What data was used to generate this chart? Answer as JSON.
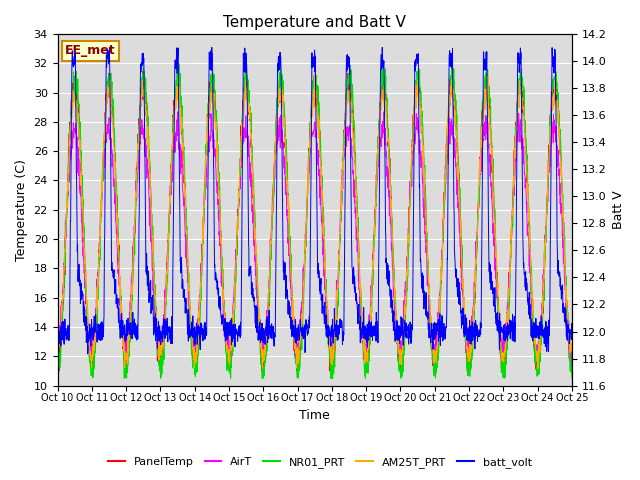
{
  "title": "Temperature and Batt V",
  "xlabel": "Time",
  "ylabel_left": "Temperature (C)",
  "ylabel_right": "Batt V",
  "ylim_left": [
    10,
    34
  ],
  "ylim_right": [
    11.6,
    14.2
  ],
  "yticks_left": [
    10,
    12,
    14,
    16,
    18,
    20,
    22,
    24,
    26,
    28,
    30,
    32,
    34
  ],
  "yticks_right": [
    11.6,
    11.8,
    12.0,
    12.2,
    12.4,
    12.6,
    12.8,
    13.0,
    13.2,
    13.4,
    13.6,
    13.8,
    14.0,
    14.2
  ],
  "xtick_labels": [
    "Oct 10",
    "Oct 11",
    "Oct 12",
    "Oct 13",
    "Oct 14",
    "Oct 15",
    "Oct 16",
    "Oct 17",
    "Oct 18",
    "Oct 19",
    "Oct 20",
    "Oct 21",
    "Oct 22",
    "Oct 23",
    "Oct 24",
    "Oct 25"
  ],
  "colors": {
    "PanelTemp": "#ff0000",
    "AirT": "#ff00ff",
    "NR01_PRT": "#00dd00",
    "AM25T_PRT": "#ffaa00",
    "batt_volt": "#0000ff"
  },
  "legend_labels": [
    "PanelTemp",
    "AirT",
    "NR01_PRT",
    "AM25T_PRT",
    "batt_volt"
  ],
  "watermark": "EE_met",
  "watermark_color": "#8B0000",
  "watermark_bg": "#ffffcc",
  "watermark_edge": "#cc8800",
  "background_color": "#dcdcdc",
  "grid_color": "#ffffff",
  "n_days": 15,
  "pts_per_day": 144,
  "title_fontsize": 11,
  "axis_fontsize": 9,
  "tick_fontsize": 8,
  "xtick_fontsize": 7
}
